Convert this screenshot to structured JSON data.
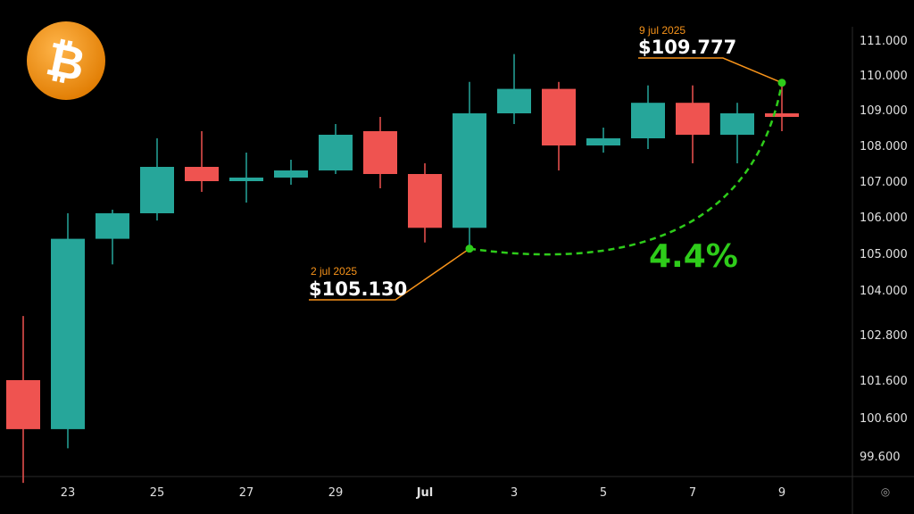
{
  "logo": {
    "symbol": "₿",
    "icon": "bitcoin-logo-icon",
    "color": "#f7931a"
  },
  "settings_icon": {
    "glyph": "◎",
    "icon": "settings-icon"
  },
  "colors": {
    "up": "#26a69a",
    "down": "#ef5350",
    "accent": "#f7931a",
    "trend": "#2ecc1a",
    "background": "#000000"
  },
  "annotations": {
    "start": {
      "date": "2 jul 2025",
      "price": "$105.130"
    },
    "end": {
      "date": "9 jul 2025",
      "price": "$109.777"
    },
    "change": "4.4%"
  },
  "chart_data": {
    "type": "candlestick",
    "x_ticks": [
      "23",
      "25",
      "27",
      "29",
      "Jul",
      "3",
      "5",
      "7",
      "9"
    ],
    "y_ticks": [
      "111.000",
      "110.000",
      "109.000",
      "108.000",
      "107.000",
      "106.000",
      "105.000",
      "104.000",
      "102.800",
      "101.600",
      "100.600",
      "99.600"
    ],
    "candles": [
      {
        "date": "2025-06-22",
        "open": 101.6,
        "high": 103.3,
        "low": 98.9,
        "close": 100.3
      },
      {
        "date": "2025-06-23",
        "open": 100.3,
        "high": 106.1,
        "low": 99.8,
        "close": 105.4
      },
      {
        "date": "2025-06-24",
        "open": 105.4,
        "high": 106.2,
        "low": 104.7,
        "close": 106.1
      },
      {
        "date": "2025-06-25",
        "open": 106.1,
        "high": 108.2,
        "low": 105.9,
        "close": 107.4
      },
      {
        "date": "2025-06-26",
        "open": 107.4,
        "high": 108.4,
        "low": 106.7,
        "close": 107.0
      },
      {
        "date": "2025-06-27",
        "open": 107.0,
        "high": 107.8,
        "low": 106.4,
        "close": 107.1
      },
      {
        "date": "2025-06-28",
        "open": 107.1,
        "high": 107.6,
        "low": 106.9,
        "close": 107.3
      },
      {
        "date": "2025-06-29",
        "open": 107.3,
        "high": 108.6,
        "low": 107.2,
        "close": 108.3
      },
      {
        "date": "2025-06-30",
        "open": 108.4,
        "high": 108.8,
        "low": 106.8,
        "close": 107.2
      },
      {
        "date": "2025-07-01",
        "open": 107.2,
        "high": 107.5,
        "low": 105.3,
        "close": 105.7
      },
      {
        "date": "2025-07-02",
        "open": 105.7,
        "high": 109.8,
        "low": 105.1,
        "close": 108.9
      },
      {
        "date": "2025-07-03",
        "open": 108.9,
        "high": 110.6,
        "low": 108.6,
        "close": 109.6
      },
      {
        "date": "2025-07-04",
        "open": 109.6,
        "high": 109.8,
        "low": 107.3,
        "close": 108.0
      },
      {
        "date": "2025-07-05",
        "open": 108.0,
        "high": 108.5,
        "low": 107.8,
        "close": 108.2
      },
      {
        "date": "2025-07-06",
        "open": 108.2,
        "high": 109.7,
        "low": 107.9,
        "close": 109.2
      },
      {
        "date": "2025-07-07",
        "open": 109.2,
        "high": 109.7,
        "low": 107.5,
        "close": 108.3
      },
      {
        "date": "2025-07-08",
        "open": 108.3,
        "high": 109.2,
        "low": 107.5,
        "close": 108.9
      },
      {
        "date": "2025-07-09",
        "open": 108.9,
        "high": 109.8,
        "low": 108.4,
        "close": 108.8
      }
    ],
    "start_point": {
      "date": "2025-07-02",
      "value": 105.13
    },
    "end_point": {
      "date": "2025-07-09",
      "value": 109.777
    },
    "change_percent": 4.4,
    "grid": false
  }
}
